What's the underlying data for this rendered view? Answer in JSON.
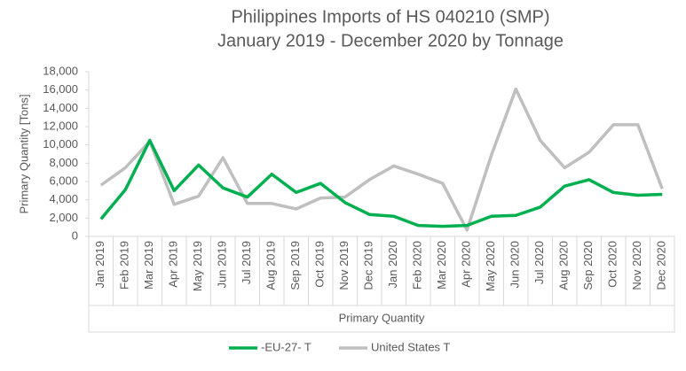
{
  "chart_data": {
    "type": "line",
    "title": "Philippines Imports of HS 040210 (SMP)",
    "subtitle": "January 2019 - December 2020 by Tonnage",
    "x_label": "Primary Quantity",
    "y_label": "Primary Quantity [Tons]",
    "categories": [
      "Jan 2019",
      "Feb 2019",
      "Mar 2019",
      "Apr 2019",
      "May 2019",
      "Jun 2019",
      "Jul 2019",
      "Aug 2019",
      "Sep 2019",
      "Oct 2019",
      "Nov 2019",
      "Dec 2019",
      "Jan 2020",
      "Feb 2020",
      "Mar 2020",
      "Apr 2020",
      "May 2020",
      "Jun 2020",
      "Jul 2020",
      "Aug 2020",
      "Sep 2020",
      "Oct 2020",
      "Nov 2020",
      "Dec 2020"
    ],
    "series": [
      {
        "name": "-EU-27- T",
        "color": "#00b050",
        "values": [
          1900,
          5100,
          10500,
          5000,
          7800,
          5300,
          4300,
          6800,
          4800,
          5800,
          3700,
          2400,
          2200,
          1200,
          1100,
          1200,
          2200,
          2300,
          3200,
          5500,
          6200,
          4800,
          4500,
          4600
        ]
      },
      {
        "name": "United States T",
        "color": "#bfbfbf",
        "values": [
          5600,
          7500,
          10400,
          3500,
          4400,
          8600,
          3600,
          3600,
          3000,
          4200,
          4300,
          6200,
          7700,
          6800,
          5800,
          700,
          8900,
          16100,
          10500,
          7500,
          9200,
          12200,
          12200,
          5200
        ]
      }
    ],
    "ylim": [
      0,
      18000
    ],
    "yticks": [
      0,
      {
        "value": 2000,
        "label": "2,000"
      },
      {
        "value": 4000,
        "label": "4,000"
      },
      {
        "value": 6000,
        "label": "6,000"
      },
      {
        "value": 8000,
        "label": "8,000"
      },
      {
        "value": 10000,
        "label": "10,000"
      },
      {
        "value": 12000,
        "label": "12,000"
      },
      {
        "value": 14000,
        "label": "14,000"
      },
      {
        "value": 16000,
        "label": "16,000"
      },
      {
        "value": 18000,
        "label": "18,000"
      }
    ],
    "grid": false,
    "legend": "bottom"
  }
}
